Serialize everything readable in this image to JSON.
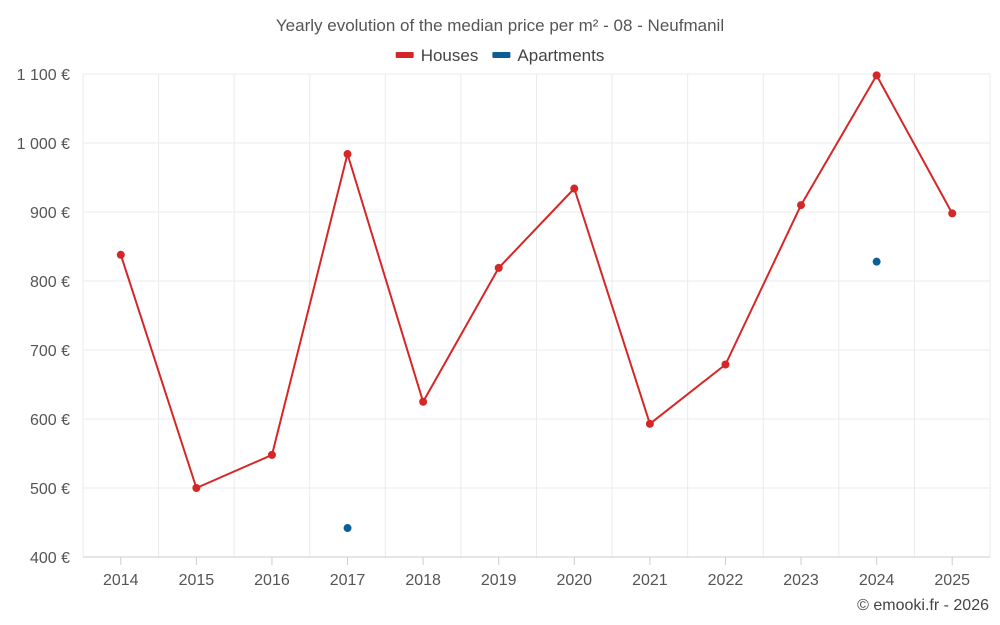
{
  "chart_data": {
    "type": "line",
    "title": "Yearly evolution of the median price per m² - 08 - Neufmanil",
    "xlabel": "",
    "ylabel": "",
    "categories": [
      "2014",
      "2015",
      "2016",
      "2017",
      "2018",
      "2019",
      "2020",
      "2021",
      "2022",
      "2023",
      "2024",
      "2025"
    ],
    "ylim": [
      400,
      1100
    ],
    "yticks": [
      400,
      500,
      600,
      700,
      800,
      900,
      1000,
      1100
    ],
    "ytick_labels": [
      "400 €",
      "500 €",
      "600 €",
      "700 €",
      "800 €",
      "900 €",
      "1 000 €",
      "1 100 €"
    ],
    "grid": true,
    "legend_position": "top-center",
    "series": [
      {
        "name": "Houses",
        "color": "#d62728",
        "values": [
          838,
          500,
          548,
          984,
          625,
          819,
          934,
          593,
          679,
          910,
          1098,
          898
        ]
      },
      {
        "name": "Apartments",
        "color": "#0b5f95",
        "values": [
          null,
          null,
          null,
          442,
          null,
          null,
          null,
          null,
          null,
          null,
          828,
          null
        ]
      }
    ]
  },
  "credit": "© emooki.fr - 2026"
}
